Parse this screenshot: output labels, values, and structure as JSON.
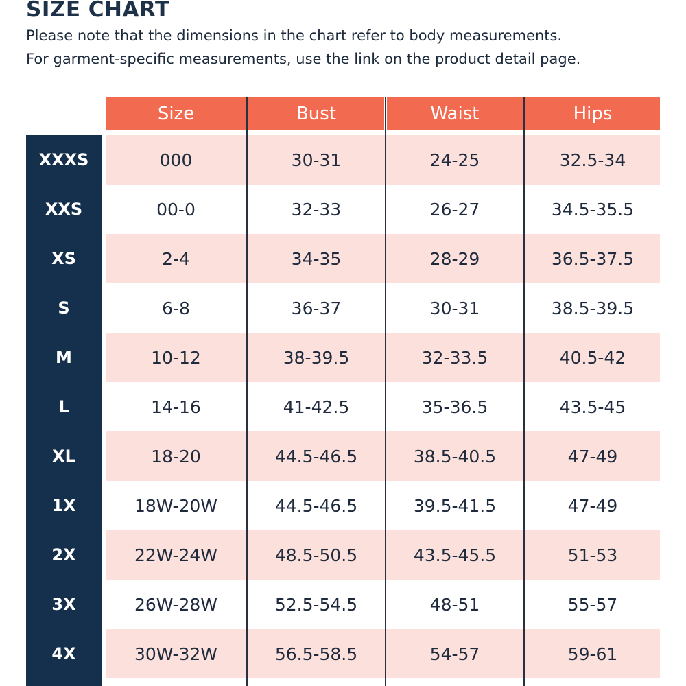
{
  "header": {
    "title": "SIZE CHART",
    "notes": [
      "Please note that the dimensions in the chart refer to body measurements.",
      "For garment-specific measurements, use the link on the product detail page."
    ]
  },
  "table": {
    "columns": [
      "Size",
      "Bust",
      "Waist",
      "Hips"
    ],
    "rows": [
      {
        "label": "XXXS",
        "cells": [
          "000",
          "30-31",
          "24-25",
          "32.5-34"
        ]
      },
      {
        "label": "XXS",
        "cells": [
          "00-0",
          "32-33",
          "26-27",
          "34.5-35.5"
        ]
      },
      {
        "label": "XS",
        "cells": [
          "2-4",
          "34-35",
          "28-29",
          "36.5-37.5"
        ]
      },
      {
        "label": "S",
        "cells": [
          "6-8",
          "36-37",
          "30-31",
          "38.5-39.5"
        ]
      },
      {
        "label": "M",
        "cells": [
          "10-12",
          "38-39.5",
          "32-33.5",
          "40.5-42"
        ]
      },
      {
        "label": "L",
        "cells": [
          "14-16",
          "41-42.5",
          "35-36.5",
          "43.5-45"
        ]
      },
      {
        "label": "XL",
        "cells": [
          "18-20",
          "44.5-46.5",
          "38.5-40.5",
          "47-49"
        ]
      },
      {
        "label": "1X",
        "cells": [
          "18W-20W",
          "44.5-46.5",
          "39.5-41.5",
          "47-49"
        ]
      },
      {
        "label": "2X",
        "cells": [
          "22W-24W",
          "48.5-50.5",
          "43.5-45.5",
          "51-53"
        ]
      },
      {
        "label": "3X",
        "cells": [
          "26W-28W",
          "52.5-54.5",
          "48-51",
          "55-57"
        ]
      },
      {
        "label": "4X",
        "cells": [
          "30W-32W",
          "56.5-58.5",
          "54-57",
          "59-61"
        ]
      }
    ]
  }
}
